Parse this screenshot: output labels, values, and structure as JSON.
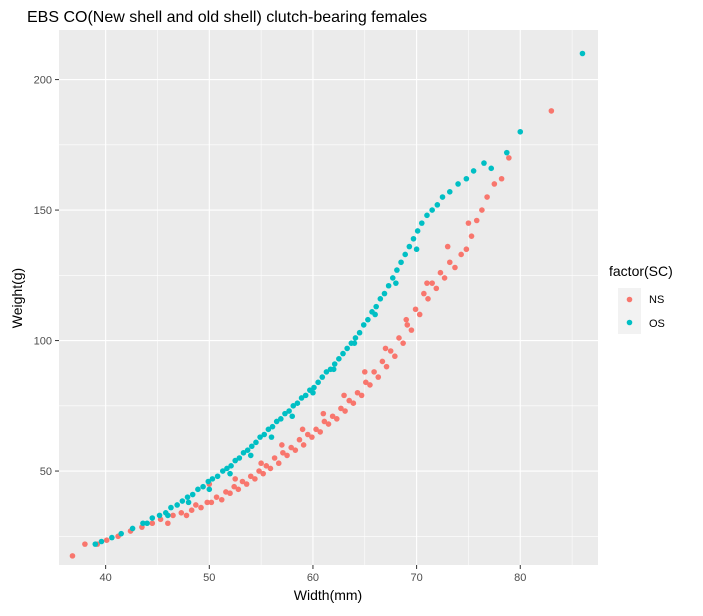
{
  "chart_data": {
    "type": "scatter",
    "title": "EBS CO(New shell and old shell) clutch-bearing females",
    "xlabel": "Width(mm)",
    "ylabel": "Weight(g)",
    "xlim": [
      35.5,
      87.5
    ],
    "ylim": [
      14,
      219
    ],
    "x_ticks": [
      40,
      50,
      60,
      70,
      80
    ],
    "y_ticks": [
      50,
      100,
      150,
      200
    ],
    "x_minor_ticks": [
      35,
      45,
      55,
      65,
      75,
      85
    ],
    "y_minor_ticks": [
      25,
      75,
      125,
      175
    ],
    "grid": true,
    "legend": {
      "title": "factor(SC)",
      "placement": "right"
    },
    "colors": {
      "panel": "#ebebeb",
      "grid": "#ffffff"
    },
    "series": [
      {
        "name": "NS",
        "color": "#F8766D",
        "points": [
          [
            36.8,
            17.5
          ],
          [
            38,
            22
          ],
          [
            39.2,
            22
          ],
          [
            40.1,
            23.5
          ],
          [
            41.2,
            25
          ],
          [
            42.4,
            27
          ],
          [
            43.5,
            28.5
          ],
          [
            44.5,
            30
          ],
          [
            45.3,
            31.5
          ],
          [
            46,
            30
          ],
          [
            46.5,
            33
          ],
          [
            47.3,
            34
          ],
          [
            47.8,
            33
          ],
          [
            48.3,
            35
          ],
          [
            48.7,
            37
          ],
          [
            49.2,
            36
          ],
          [
            49.8,
            38
          ],
          [
            50.2,
            38
          ],
          [
            50.7,
            40
          ],
          [
            51.2,
            39
          ],
          [
            51.6,
            42
          ],
          [
            52,
            41.5
          ],
          [
            52.4,
            44
          ],
          [
            52.8,
            43
          ],
          [
            53.2,
            46
          ],
          [
            53.6,
            45
          ],
          [
            54,
            48
          ],
          [
            54.4,
            47
          ],
          [
            54.8,
            50
          ],
          [
            55.2,
            49
          ],
          [
            55.5,
            52
          ],
          [
            55.9,
            51
          ],
          [
            56.3,
            55
          ],
          [
            56.7,
            53
          ],
          [
            57.1,
            57
          ],
          [
            57.5,
            56
          ],
          [
            57.9,
            59
          ],
          [
            58.3,
            58
          ],
          [
            58.7,
            62
          ],
          [
            59.1,
            60
          ],
          [
            59.5,
            64
          ],
          [
            59.9,
            63
          ],
          [
            60.3,
            66
          ],
          [
            60.7,
            65
          ],
          [
            61.1,
            69
          ],
          [
            61.5,
            68
          ],
          [
            61.9,
            71
          ],
          [
            62.3,
            70
          ],
          [
            62.7,
            74
          ],
          [
            63.1,
            73
          ],
          [
            63.5,
            77
          ],
          [
            63.9,
            76
          ],
          [
            64.3,
            80
          ],
          [
            64.7,
            79
          ],
          [
            65.1,
            84
          ],
          [
            65.5,
            83
          ],
          [
            65.9,
            88
          ],
          [
            66.3,
            86
          ],
          [
            66.7,
            92
          ],
          [
            67.1,
            90
          ],
          [
            67.5,
            96
          ],
          [
            67.9,
            94
          ],
          [
            68.3,
            101
          ],
          [
            68.7,
            99
          ],
          [
            69.1,
            106
          ],
          [
            69.5,
            104
          ],
          [
            69.9,
            112
          ],
          [
            70.3,
            110
          ],
          [
            70.7,
            118
          ],
          [
            71.1,
            116
          ],
          [
            71.5,
            122
          ],
          [
            71.9,
            120
          ],
          [
            72.3,
            126
          ],
          [
            72.7,
            124
          ],
          [
            73.2,
            130
          ],
          [
            73.7,
            128
          ],
          [
            74.3,
            133
          ],
          [
            74.8,
            135
          ],
          [
            75.3,
            140
          ],
          [
            75.8,
            146
          ],
          [
            76.3,
            150
          ],
          [
            76.8,
            155
          ],
          [
            77.5,
            160
          ],
          [
            78.2,
            162
          ],
          [
            78.9,
            170
          ],
          [
            83,
            188
          ],
          [
            50,
            45
          ],
          [
            52.5,
            47
          ],
          [
            55,
            53
          ],
          [
            57,
            60
          ],
          [
            59,
            66
          ],
          [
            61,
            72
          ],
          [
            63,
            79
          ],
          [
            65,
            88
          ],
          [
            67,
            97
          ],
          [
            69,
            108
          ],
          [
            71,
            122
          ],
          [
            73,
            136
          ],
          [
            75,
            145
          ]
        ]
      },
      {
        "name": "OS",
        "color": "#00BFC4",
        "points": [
          [
            39,
            22
          ],
          [
            39.6,
            23
          ],
          [
            40.6,
            24.5
          ],
          [
            41.5,
            26
          ],
          [
            42.6,
            28
          ],
          [
            43.6,
            30
          ],
          [
            44.5,
            32
          ],
          [
            45.2,
            33
          ],
          [
            45.8,
            34
          ],
          [
            46.3,
            36
          ],
          [
            46.9,
            37
          ],
          [
            47.4,
            38.5
          ],
          [
            47.9,
            40
          ],
          [
            48.4,
            41
          ],
          [
            48.9,
            43
          ],
          [
            49.4,
            44
          ],
          [
            49.9,
            46
          ],
          [
            50.3,
            47
          ],
          [
            50.8,
            48
          ],
          [
            51.3,
            50
          ],
          [
            51.7,
            51
          ],
          [
            52.1,
            52
          ],
          [
            52.5,
            54
          ],
          [
            52.9,
            55
          ],
          [
            53.3,
            57
          ],
          [
            53.7,
            58
          ],
          [
            54.1,
            59.5
          ],
          [
            54.5,
            61
          ],
          [
            54.9,
            63
          ],
          [
            55.3,
            64
          ],
          [
            55.7,
            66
          ],
          [
            56.1,
            67
          ],
          [
            56.5,
            69
          ],
          [
            56.9,
            70
          ],
          [
            57.3,
            72
          ],
          [
            57.7,
            73
          ],
          [
            58.1,
            75
          ],
          [
            58.5,
            76
          ],
          [
            58.9,
            78
          ],
          [
            59.3,
            79
          ],
          [
            59.7,
            81
          ],
          [
            60.1,
            82
          ],
          [
            60.5,
            84
          ],
          [
            60.9,
            86
          ],
          [
            61.3,
            88
          ],
          [
            61.7,
            89
          ],
          [
            62.1,
            91
          ],
          [
            62.5,
            93
          ],
          [
            62.9,
            95
          ],
          [
            63.3,
            97
          ],
          [
            63.7,
            99
          ],
          [
            64.1,
            101
          ],
          [
            64.5,
            103
          ],
          [
            64.9,
            106
          ],
          [
            65.3,
            108
          ],
          [
            65.7,
            111
          ],
          [
            66.1,
            113
          ],
          [
            66.5,
            116
          ],
          [
            66.9,
            118
          ],
          [
            67.3,
            121
          ],
          [
            67.7,
            124
          ],
          [
            68.1,
            127
          ],
          [
            68.5,
            130
          ],
          [
            68.9,
            133
          ],
          [
            69.3,
            136
          ],
          [
            69.7,
            139
          ],
          [
            70.1,
            142
          ],
          [
            70.5,
            145
          ],
          [
            71,
            148
          ],
          [
            71.5,
            150
          ],
          [
            72,
            152
          ],
          [
            72.5,
            155
          ],
          [
            73.2,
            157
          ],
          [
            74,
            160
          ],
          [
            74.8,
            162
          ],
          [
            75.5,
            165
          ],
          [
            76.5,
            168
          ],
          [
            77.2,
            166
          ],
          [
            78.7,
            172
          ],
          [
            80,
            180
          ],
          [
            86,
            210
          ],
          [
            44,
            30
          ],
          [
            46,
            33
          ],
          [
            48,
            38
          ],
          [
            50,
            43
          ],
          [
            52,
            49
          ],
          [
            54,
            56
          ],
          [
            56,
            63
          ],
          [
            58,
            71
          ],
          [
            60,
            80
          ],
          [
            62,
            89
          ],
          [
            64,
            99
          ],
          [
            66,
            110
          ],
          [
            68,
            122
          ],
          [
            70,
            135
          ]
        ]
      }
    ]
  }
}
